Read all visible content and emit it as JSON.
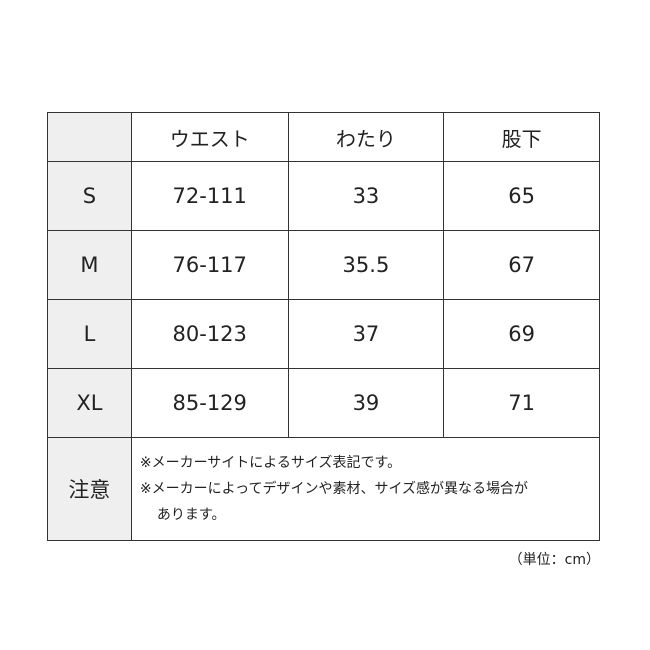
{
  "table": {
    "headers": [
      "",
      "ウエスト",
      "わたり",
      "股下"
    ],
    "rows": [
      [
        "S",
        "72-111",
        "33",
        "65"
      ],
      [
        "M",
        "76-117",
        "35.5",
        "67"
      ],
      [
        "L",
        "80-123",
        "37",
        "69"
      ],
      [
        "XL",
        "85-129",
        "39",
        "71"
      ]
    ],
    "note_label": "注意",
    "notes": [
      "※メーカーサイトによるサイズ表記です。",
      "※メーカーによってデザインや素材、サイズ感が異なる場合が",
      "あります。"
    ]
  },
  "unit": "（単位：cm）",
  "colors": {
    "label_cell": "#efefef",
    "border": "#333333"
  }
}
